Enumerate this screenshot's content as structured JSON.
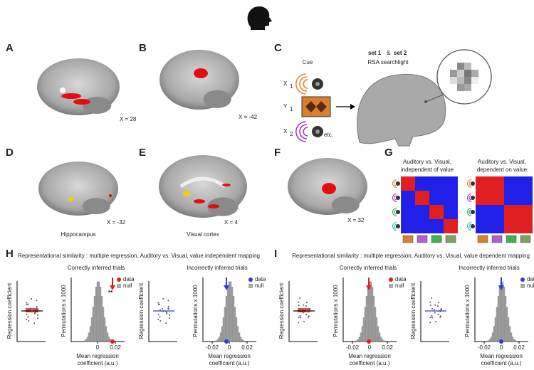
{
  "panels": {
    "A": {
      "label": "A",
      "caption": "X = 28"
    },
    "B": {
      "label": "B",
      "caption": "X = -42"
    },
    "C": {
      "label": "C",
      "cue": "Cue",
      "items": [
        {
          "name": "X",
          "sub": "1"
        },
        {
          "name": "Y",
          "sub": "1"
        },
        {
          "name": "X",
          "sub": "2"
        }
      ],
      "etc": "etc.",
      "set1": "set 1",
      "amp": "&",
      "set2": "set 2",
      "method": "RSA searchlight"
    },
    "D": {
      "label": "D",
      "caption": "X = -32",
      "region": "Hippocampus"
    },
    "E": {
      "label": "E",
      "caption": "X = 4",
      "region": "Visual cortex"
    },
    "F": {
      "label": "F",
      "caption": "X = 32"
    },
    "G": {
      "label": "G",
      "matrices": [
        [
          "Auditory vs. Visual,",
          "independent of value"
        ],
        [
          "Auditory vs. Visual,",
          "dependent on value"
        ]
      ]
    },
    "H": {
      "label": "H",
      "title": "Representational similarity : multiple regression, Auditory vs. Visual, value independent mapping",
      "groups": [
        {
          "name": "Correctly inferred trials",
          "xticks": [
            "0",
            "0.02"
          ],
          "significance": "**"
        },
        {
          "name": "Incorrectly inferred trials",
          "xticks": [
            "-0.02",
            "0",
            "0.02"
          ]
        }
      ]
    },
    "I": {
      "label": "I",
      "title": "Representational similarity : multiple regression, Auditory vs. Visual, value dependent mapping",
      "groups": [
        {
          "name": "Correctly inferred trials",
          "xticks": [
            "-0.02",
            "0",
            "0.02"
          ]
        },
        {
          "name": "Incorrectly inferred trials",
          "xticks": [
            "-0.02",
            "0",
            "0.02"
          ]
        }
      ]
    }
  },
  "axes": {
    "scatter_y": "Regression coefficient",
    "hist_y": "Permutations x 1000",
    "hist_x": [
      "Mean regression",
      "coefficient (a.u.)"
    ],
    "legend": [
      "data",
      "null"
    ]
  }
}
